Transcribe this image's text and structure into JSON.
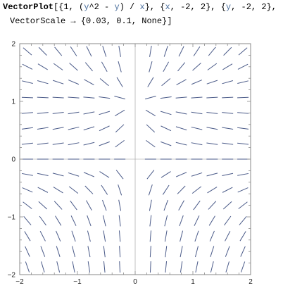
{
  "input": {
    "line1": [
      {
        "t": "VectorPlot",
        "c": "kw"
      },
      {
        "t": "[{1, (",
        "c": ""
      },
      {
        "t": "y",
        "c": "var"
      },
      {
        "t": "^2 - ",
        "c": ""
      },
      {
        "t": "y",
        "c": "var"
      },
      {
        "t": ") / ",
        "c": ""
      },
      {
        "t": "x",
        "c": "var"
      },
      {
        "t": "}, {",
        "c": ""
      },
      {
        "t": "x",
        "c": "var"
      },
      {
        "t": ", -2, 2}, {",
        "c": ""
      },
      {
        "t": "y",
        "c": "var"
      },
      {
        "t": ", -2, 2},",
        "c": ""
      }
    ],
    "line2": [
      {
        "t": "VectorScale",
        "c": ""
      },
      {
        "t": " → ",
        "c": ""
      },
      {
        "t": "{0.03, 0.1, None}]",
        "c": ""
      }
    ]
  },
  "chart_data": {
    "type": "vector",
    "field": "{1, (y^2 - y)/x}",
    "xlim": [
      -2,
      2
    ],
    "ylim": [
      -2,
      2
    ],
    "grid_count": 15,
    "x_ticks": [
      -2,
      -1,
      0,
      1,
      2
    ],
    "y_ticks": [
      -2,
      -1,
      0,
      1,
      2
    ],
    "minor_ticks_per_major": 4,
    "stroke_color": "#4a5a88",
    "axis_color": "#999999",
    "frame_color": "#888888"
  }
}
